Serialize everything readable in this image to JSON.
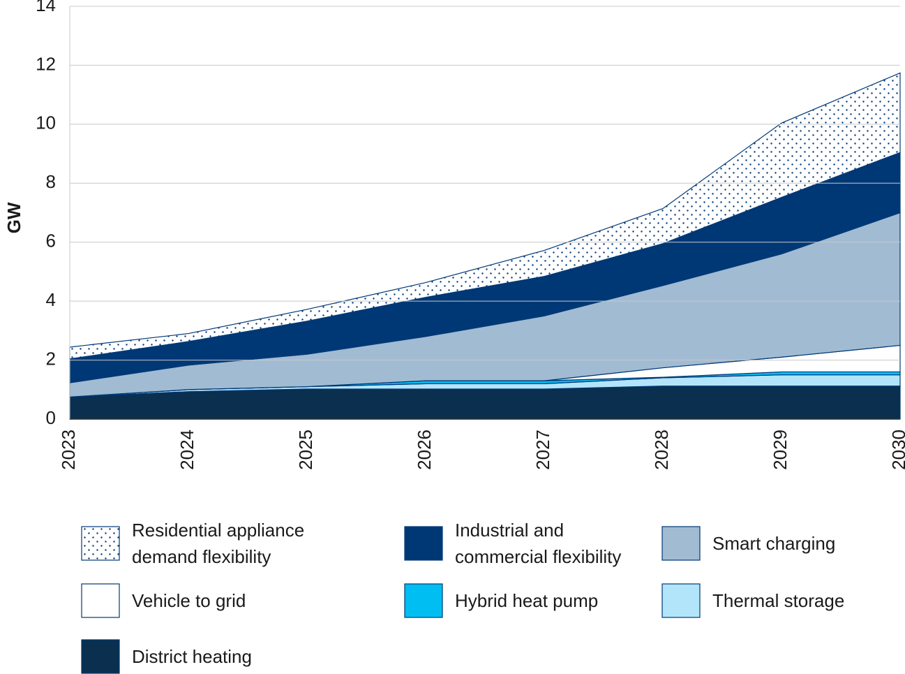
{
  "chart_data": {
    "type": "stacked_area",
    "y_label": "GW",
    "categories": [
      "2023",
      "2024",
      "2025",
      "2026",
      "2027",
      "2028",
      "2029",
      "2030"
    ],
    "ylim": [
      0,
      14
    ],
    "yticks": [
      0,
      2,
      4,
      6,
      8,
      10,
      12,
      14
    ],
    "grid": true,
    "edge_color": "#003876",
    "series": [
      {
        "name": "Residential appliance demand flexibility",
        "color": "#003876",
        "hatch": true,
        "values": [
          0.4,
          0.27,
          0.4,
          0.5,
          0.88,
          1.19,
          2.52,
          2.7
        ]
      },
      {
        "name": "Industrial and commercial flexibility",
        "color": "#003876",
        "values": [
          0.81,
          0.8,
          1.12,
          1.33,
          1.34,
          1.42,
          1.92,
          2.04
        ]
      },
      {
        "name": "Smart charging",
        "color": "#a1bbd3",
        "values": [
          0.48,
          0.83,
          1.1,
          1.5,
          2.2,
          2.79,
          3.5,
          4.5
        ]
      },
      {
        "name": "Vehicle to grid",
        "color": "#ffffff",
        "values": [
          0,
          0,
          0,
          0,
          0,
          0.32,
          0.5,
          0.9
        ]
      },
      {
        "name": "Hybrid heat pump",
        "color": "#00bdf2",
        "values": [
          0,
          0,
          0,
          0.1,
          0.1,
          0.02,
          0.1,
          0.1
        ]
      },
      {
        "name": "Thermal storage",
        "color": "#b3e5fa",
        "values": [
          0,
          0.07,
          0.08,
          0.18,
          0.18,
          0.28,
          0.38,
          0.38
        ]
      },
      {
        "name": "District heating",
        "color": "#0a2f4f",
        "values": [
          0.75,
          0.93,
          1.02,
          1.02,
          1.02,
          1.12,
          1.12,
          1.12
        ]
      }
    ]
  }
}
